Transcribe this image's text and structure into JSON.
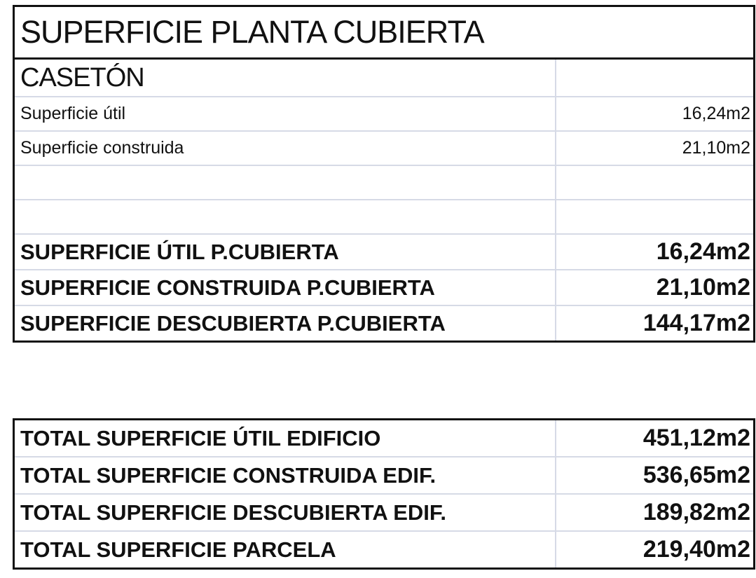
{
  "planta_cubierta": {
    "title": "SUPERFICIE PLANTA CUBIERTA",
    "section": "CASETÓN",
    "items": [
      {
        "label": "Superficie útil",
        "value": "16,24m2"
      },
      {
        "label": "Superficie construida",
        "value": "21,10m2"
      }
    ],
    "summary": [
      {
        "label": "SUPERFICIE ÚTIL P.CUBIERTA",
        "value": "16,24m2"
      },
      {
        "label": "SUPERFICIE CONSTRUIDA P.CUBIERTA",
        "value": "21,10m2"
      },
      {
        "label": "SUPERFICIE DESCUBIERTA P.CUBIERTA",
        "value": "144,17m2"
      }
    ]
  },
  "totales": [
    {
      "label": "TOTAL SUPERFICIE ÚTIL EDIFICIO",
      "value": "451,12m2"
    },
    {
      "label": "TOTAL SUPERFICIE CONSTRUIDA EDIF.",
      "value": "536,65m2"
    },
    {
      "label": "TOTAL SUPERFICIE DESCUBIERTA EDIF.",
      "value": "189,82m2"
    },
    {
      "label": "TOTAL SUPERFICIE PARCELA",
      "value": "219,40m2"
    }
  ]
}
